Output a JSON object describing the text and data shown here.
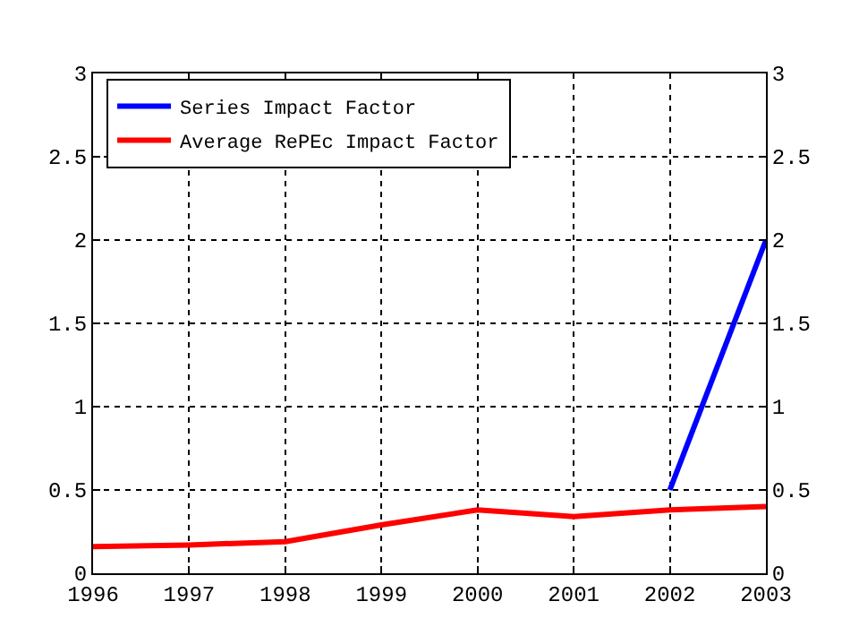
{
  "chart_data": {
    "type": "line",
    "x": [
      1996,
      1997,
      1998,
      1999,
      2000,
      2001,
      2002,
      2003
    ],
    "series": [
      {
        "name": "Series Impact Factor",
        "color": "#0000ff",
        "x": [
          2002,
          2003
        ],
        "values": [
          0.5,
          2.0
        ]
      },
      {
        "name": "Average RePEc Impact Factor",
        "color": "#ff0000",
        "values": [
          0.16,
          0.17,
          0.19,
          0.29,
          0.38,
          0.34,
          0.38,
          0.4
        ]
      }
    ],
    "xlim": [
      1996,
      2003
    ],
    "xticks": [
      1996,
      1997,
      1998,
      1999,
      2000,
      2001,
      2002,
      2003
    ],
    "ylim": [
      0,
      3
    ],
    "yticks": [
      0,
      0.5,
      1,
      1.5,
      2,
      2.5,
      3
    ],
    "y2lim": [
      0,
      3
    ],
    "y2ticks": [
      0,
      0.5,
      1,
      1.5,
      2,
      2.5,
      3
    ],
    "grid": true,
    "legend": "top left",
    "marker": "none",
    "line_style": "solid"
  }
}
